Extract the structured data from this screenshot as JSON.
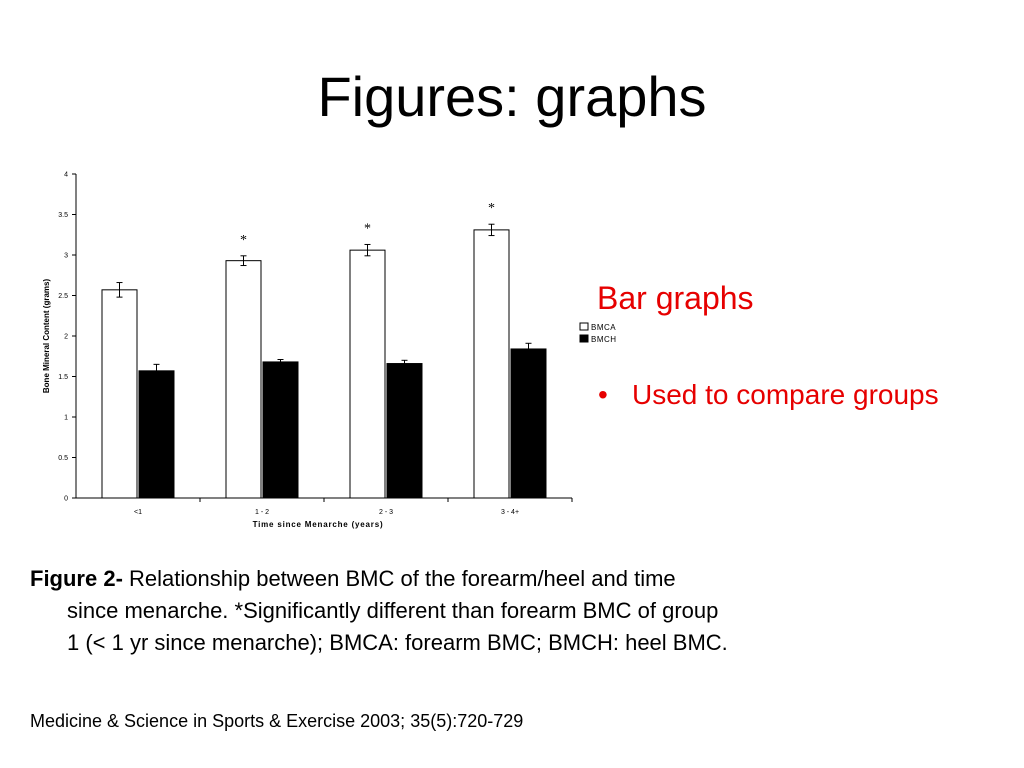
{
  "slide": {
    "title": "Figures: graphs",
    "side_heading": "Bar graphs",
    "bullet_glyph": "•",
    "bullet_text": "Used to compare groups",
    "caption": {
      "lead": "Figure 2-",
      "line1_rest": " Relationship between BMC of the forearm/heel and time",
      "line2": "since menarche. *Significantly different than forearm BMC of group",
      "line3": "1 (< 1 yr since menarche); BMCA: forearm BMC; BMCH: heel BMC."
    },
    "citation": "Medicine & Science in Sports & Exercise 2003; 35(5):720-729"
  },
  "chart_data": {
    "type": "bar",
    "categories": [
      "<1",
      "1 - 2",
      "2 - 3",
      "3 - 4+"
    ],
    "series": [
      {
        "name": "BMCA",
        "color": "#ffffff",
        "values": [
          2.57,
          2.93,
          3.06,
          3.31
        ],
        "errors": [
          0.09,
          0.06,
          0.07,
          0.07
        ]
      },
      {
        "name": "BMCH",
        "color": "#000000",
        "values": [
          1.57,
          1.68,
          1.66,
          1.84
        ],
        "errors": [
          0.08,
          0.03,
          0.04,
          0.07
        ]
      }
    ],
    "significance": [
      "",
      "*",
      "*",
      "*"
    ],
    "yticks": [
      "0",
      "0.5",
      "1",
      "1.5",
      "2",
      "2.5",
      "3",
      "3.5",
      "4"
    ],
    "ylim": [
      0,
      4
    ],
    "xlabel": "Time since Menarche (years)",
    "ylabel": "Bone Mineral Content (grams)",
    "legend_position": "right"
  }
}
